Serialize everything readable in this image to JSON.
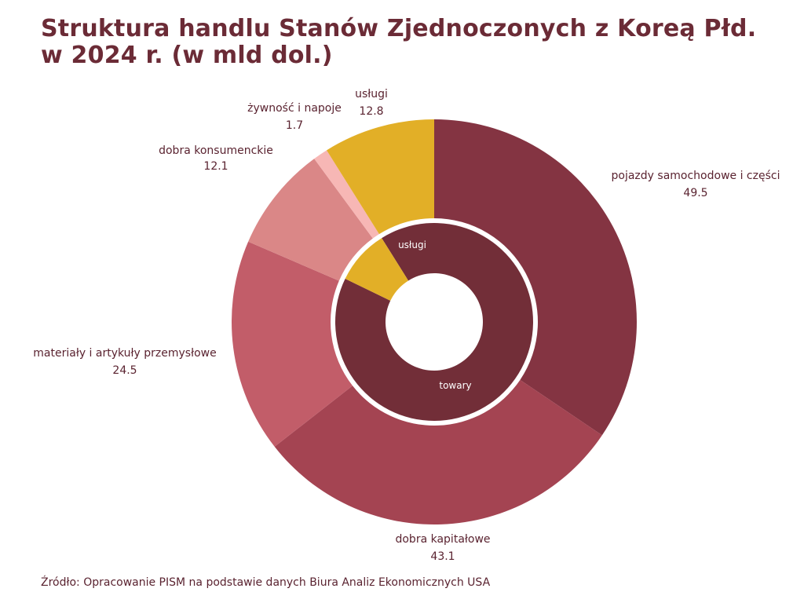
{
  "title_line1": "Struktura handlu Stanów Zjednoczonych z Koreą Płd.",
  "title_line2": "w 2024 r. (w mld dol.)",
  "source": "Źródło: Opracowanie PISM na podstawie danych Biura Analiz Ekonomicznych USA",
  "chart_data": {
    "type": "pie",
    "title": "Struktura handlu Stanów Zjednoczonych z Koreą Płd. w 2024 r. (w mld dol.)",
    "outer": [
      {
        "label": "pojazdy samochodowe i części",
        "value": 49.5,
        "color": "#843442"
      },
      {
        "label": "dobra kapitałowe",
        "value": 43.1,
        "color": "#a44452"
      },
      {
        "label": "materiały i artykuły przemysłowe",
        "value": 24.5,
        "color": "#c25d69"
      },
      {
        "label": "dobra konsumenckie",
        "value": 12.1,
        "color": "#da8787"
      },
      {
        "label": "żywność i napoje",
        "value": 1.7,
        "color": "#f7b7b5"
      },
      {
        "label": "usługi",
        "value": 12.8,
        "color": "#e2af27"
      }
    ],
    "inner": [
      {
        "label": "towary",
        "value": 130.9,
        "color": "#722e38"
      },
      {
        "label": "usługi",
        "value": 12.8,
        "color": "#e2af27"
      }
    ]
  }
}
